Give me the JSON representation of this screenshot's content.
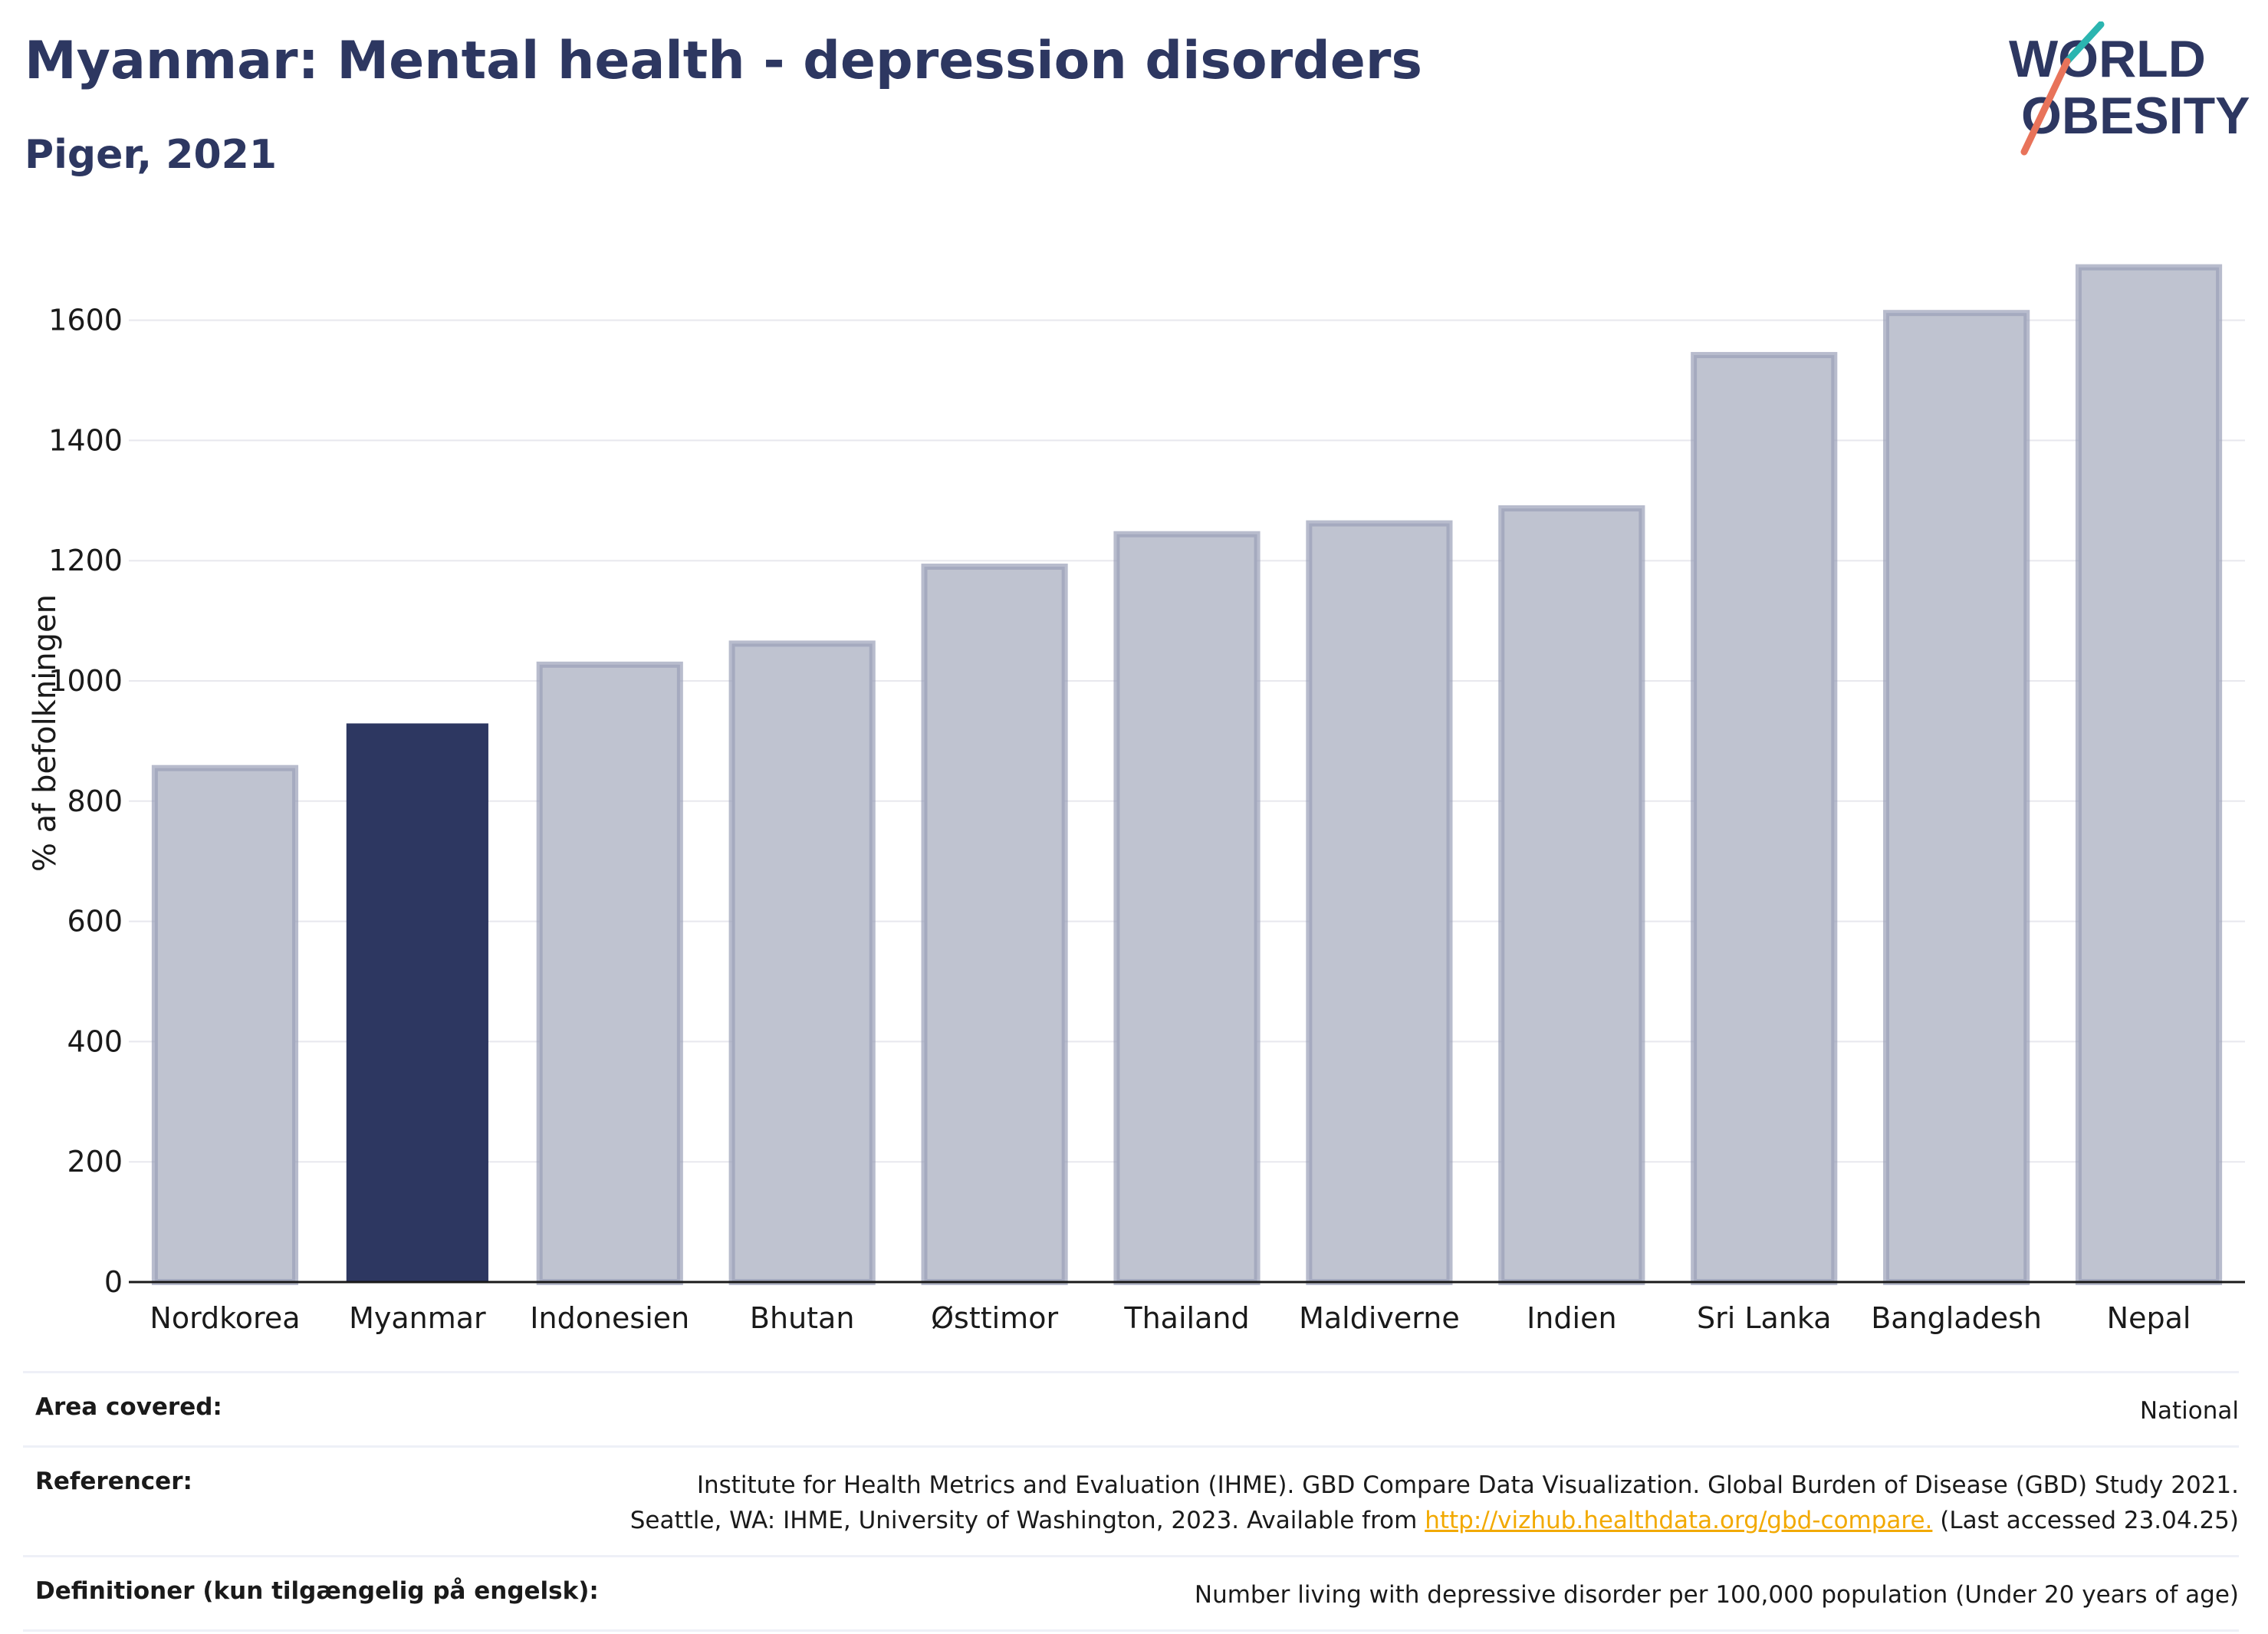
{
  "title": "Myanmar: Mental health - depression disorders",
  "subtitle": "Piger, 2021",
  "logo": {
    "line1": "WORLD",
    "line2": "OBESITY"
  },
  "colors": {
    "highlight": "#2d3761",
    "others": "#bfc3d0",
    "others_border": "#9aa0b8",
    "grid": "#e8e8ee",
    "link": "#f2a900"
  },
  "chart_data": {
    "type": "bar",
    "categories": [
      "Nordkorea",
      "Myanmar",
      "Indonesien",
      "Bhutan",
      "Østtimor",
      "Thailand",
      "Maldiverne",
      "Indien",
      "Sri Lanka",
      "Bangladesh",
      "Nepal"
    ],
    "values": [
      855,
      928,
      1027,
      1062,
      1190,
      1244,
      1262,
      1287,
      1542,
      1612,
      1688
    ],
    "highlight": "Myanmar",
    "ylabel": "% af befolkningen",
    "xlabel": "",
    "ylim": [
      0,
      1750
    ],
    "yticks": [
      0,
      200,
      400,
      600,
      800,
      1000,
      1200,
      1400,
      1600
    ],
    "grid": true
  },
  "meta": {
    "area_label": "Area covered:",
    "area_value": "National",
    "ref_label": "Referencer:",
    "ref_line1": "Institute for Health Metrics and Evaluation (IHME). GBD Compare Data Visualization. Global Burden of Disease (GBD) Study 2021.",
    "ref_line2_pre": "Seattle, WA: IHME, University of Washington, 2023. Available from ",
    "ref_link": "http://vizhub.healthdata.org/gbd-compare.",
    "ref_line2_post": " (Last accessed 23.04.25)",
    "def_label": "Definitioner (kun tilgængelig på engelsk):",
    "def_value": "Number living with depressive disorder per 100,000 population (Under 20 years of age)"
  }
}
